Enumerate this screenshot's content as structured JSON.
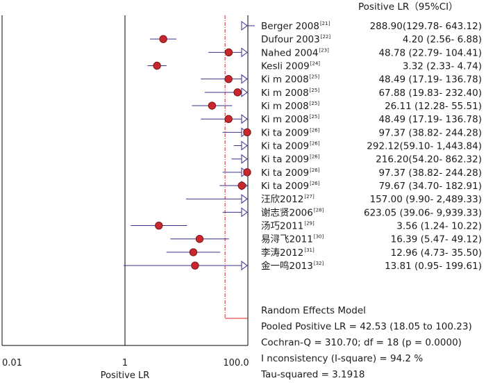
{
  "chart_data": {
    "type": "forest",
    "header": "Positive LR（95%CI）",
    "xlabel": "Positive LR",
    "x_scale": "log",
    "xlim": [
      0.01,
      100.0
    ],
    "x_ticks": [
      "0.01",
      "1",
      "100.0"
    ],
    "pooled_estimate": 42.53,
    "studies": [
      {
        "name": "Berger 2008",
        "ref": "[21]",
        "lr": 288.9,
        "lo": 129.78,
        "hi": 643.12,
        "ci_text": "288.90(129.78- 643.12)"
      },
      {
        "name": "Dufour 2003",
        "ref": "[22]",
        "lr": 4.2,
        "lo": 2.56,
        "hi": 6.88,
        "ci_text": "4.20 (2.56- 6.88)"
      },
      {
        "name": "Nahed 2004",
        "ref": "[23]",
        "lr": 48.78,
        "lo": 22.79,
        "hi": 104.41,
        "ci_text": "48.78 (22.79- 104.41)"
      },
      {
        "name": "Kesli 2009",
        "ref": "[24]",
        "lr": 3.32,
        "lo": 2.33,
        "hi": 4.74,
        "ci_text": "3.32 (2.33- 4.74)"
      },
      {
        "name": "Ki m 2008",
        "ref": "[25]",
        "lr": 48.49,
        "lo": 17.19,
        "hi": 136.78,
        "ci_text": "48.49 (17.19- 136.78)"
      },
      {
        "name": "Ki m 2008",
        "ref": "[25]",
        "lr": 67.88,
        "lo": 19.83,
        "hi": 232.4,
        "ci_text": "67.88 (19.83- 232.40)"
      },
      {
        "name": "Ki m 2008",
        "ref": "[25]",
        "lr": 26.11,
        "lo": 12.28,
        "hi": 55.51,
        "ci_text": "26.11 (12.28- 55.51)"
      },
      {
        "name": "Ki m 2008",
        "ref": "[25]",
        "lr": 48.49,
        "lo": 17.19,
        "hi": 136.78,
        "ci_text": "48.49 (17.19- 136.78)"
      },
      {
        "name": "Ki ta 2009",
        "ref": "[26]",
        "lr": 97.37,
        "lo": 38.82,
        "hi": 244.28,
        "ci_text": "97.37 (38.82- 244.28)"
      },
      {
        "name": "Ki ta 2009",
        "ref": "[26]",
        "lr": 292.12,
        "lo": 59.1,
        "hi": 1443.84,
        "ci_text": "292.12(59.10- 1,443.84)"
      },
      {
        "name": "Ki ta 2009",
        "ref": "[26]",
        "lr": 216.2,
        "lo": 54.2,
        "hi": 862.32,
        "ci_text": "216.20(54.20- 862.32)"
      },
      {
        "name": "Ki ta 2009",
        "ref": "[26]",
        "lr": 97.37,
        "lo": 38.82,
        "hi": 244.28,
        "ci_text": "97.37 (38.82- 244.28)"
      },
      {
        "name": "Ki ta 2009",
        "ref": "[26]",
        "lr": 79.67,
        "lo": 34.7,
        "hi": 182.91,
        "ci_text": "79.67 (34.70- 182.91)"
      },
      {
        "name": "汪欣2012",
        "ref": "[27]",
        "lr": 157.0,
        "lo": 9.9,
        "hi": 2489.33,
        "ci_text": "157.00 (9.90- 2,489.33)"
      },
      {
        "name": "谢志贤2006",
        "ref": "[28]",
        "lr": 623.05,
        "lo": 39.06,
        "hi": 9939.33,
        "ci_text": "623.05 (39.06- 9,939.33)"
      },
      {
        "name": "汤巧2011",
        "ref": "[29]",
        "lr": 3.56,
        "lo": 1.24,
        "hi": 10.22,
        "ci_text": "3.56 (1.24- 10.22)"
      },
      {
        "name": "易浔飞2011",
        "ref": "[30]",
        "lr": 16.39,
        "lo": 5.47,
        "hi": 49.12,
        "ci_text": "16.39 (5.47- 49.12)"
      },
      {
        "name": "李涛2012",
        "ref": "[31]",
        "lr": 12.96,
        "lo": 4.73,
        "hi": 35.5,
        "ci_text": "12.96 (4.73- 35.50)"
      },
      {
        "name": "金一鸣2013",
        "ref": "[32]",
        "lr": 13.81,
        "lo": 0.95,
        "hi": 199.61,
        "ci_text": "13.81 (0.95- 199.61)"
      }
    ],
    "summary": {
      "model": "Random Effects Model",
      "pooled": "Pooled Positive LR = 42.53 (18.05 to 100.23)",
      "cochran": "Cochran-Q = 310.70; df = 18 (p = 0.0000)",
      "inconsistency": "I nconsistency (I-square) = 94.2 %",
      "tau": "Tau-squared = 3.1918"
    },
    "colors": {
      "marker_fill": "#c8282d",
      "marker_stroke": "#7a1418",
      "ci_line": "#3a2f8c",
      "pooled_line": "#d42020",
      "axis": "#000000"
    }
  }
}
